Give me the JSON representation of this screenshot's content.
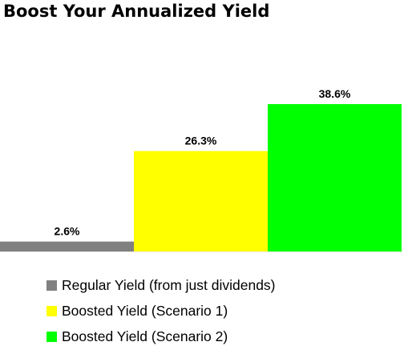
{
  "chart_data": {
    "type": "bar",
    "title": "Boost Your Annualized Yield",
    "series": [
      {
        "name": "Regular Yield (from just dividends)",
        "value": 2.6,
        "label": "2.6%",
        "color": "#808080"
      },
      {
        "name": "Boosted Yield (Scenario 1)",
        "value": 26.3,
        "label": "26.3%",
        "color": "#ffff00"
      },
      {
        "name": "Boosted Yield (Scenario 2)",
        "value": 38.6,
        "label": "38.6%",
        "color": "#00ff00"
      }
    ],
    "ylim": [
      0,
      38.6
    ],
    "xlabel": "",
    "ylabel": "",
    "grid": false,
    "legend_placement": "bottom"
  }
}
